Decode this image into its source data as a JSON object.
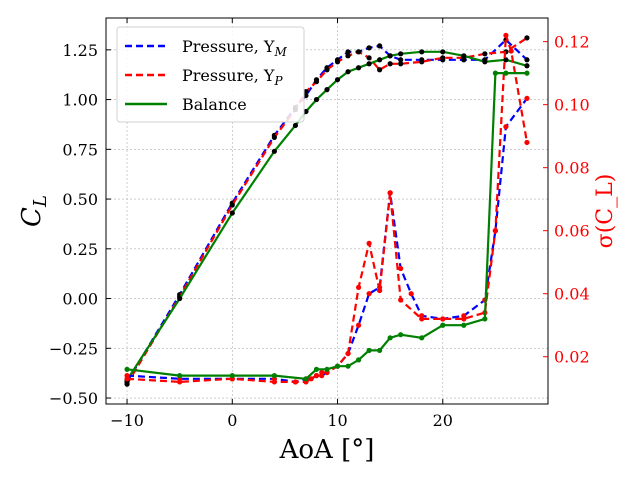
{
  "chart_data": {
    "type": "line",
    "x": [
      -10,
      -5,
      0,
      4,
      6,
      7,
      8,
      8.5,
      9,
      10,
      11,
      12,
      13,
      14,
      15,
      16,
      18,
      20,
      22,
      24,
      26,
      28
    ],
    "xlabel": "AoA [°]",
    "ylabel_left": "C_L",
    "ylabel_right": "σ(C_L)",
    "xlim": [
      -12,
      30
    ],
    "ylim_left": [
      -0.53,
      1.41
    ],
    "ylim_right": [
      0.005,
      0.1275
    ],
    "xticks": [
      -10,
      0,
      10,
      20
    ],
    "xtick_labels": [
      "−10",
      "0",
      "10",
      "20"
    ],
    "yticks_left": [
      -0.5,
      -0.25,
      0.0,
      0.25,
      0.5,
      0.75,
      1.0,
      1.25
    ],
    "ytick_labels_left": [
      "−0.50",
      "−0.25",
      "0.00",
      "0.25",
      "0.50",
      "0.75",
      "1.00",
      "1.25"
    ],
    "yticks_right": [
      0.02,
      0.04,
      0.06,
      0.08,
      0.1,
      0.12
    ],
    "ytick_labels_right": [
      "0.02",
      "0.04",
      "0.06",
      "0.08",
      "0.10",
      "0.12"
    ],
    "grid": true,
    "legend_position": "top-left",
    "legend": [
      {
        "label": "Pressure, Y",
        "sub": "M",
        "color": "#0000ff",
        "style": "dashed"
      },
      {
        "label": "Pressure, Y",
        "sub": "P",
        "color": "#ff0000",
        "style": "dashed"
      },
      {
        "label": "Balance",
        "sub": "",
        "color": "#008000",
        "style": "solid"
      }
    ],
    "series": [
      {
        "name": "Pressure, Y_M CL",
        "axis": "left",
        "color": "#0000ff",
        "style": "dashed",
        "marker": "#000000",
        "x": [
          -10,
          -5,
          0,
          4,
          6,
          7,
          8,
          9,
          10,
          11,
          12,
          13,
          14,
          15,
          16,
          18,
          20,
          22,
          24,
          26,
          28
        ],
        "values": [
          -0.42,
          0.02,
          0.48,
          0.82,
          0.96,
          1.02,
          1.1,
          1.16,
          1.2,
          1.24,
          1.24,
          1.26,
          1.27,
          1.22,
          1.2,
          1.2,
          1.2,
          1.2,
          1.2,
          1.3,
          1.2
        ]
      },
      {
        "name": "Pressure, Y_P CL",
        "axis": "left",
        "color": "#ff0000",
        "style": "dashed",
        "marker": "#000000",
        "x": [
          -10,
          -5,
          0,
          4,
          6,
          7,
          8,
          9,
          10,
          11,
          12,
          13,
          14,
          15,
          16,
          18,
          20,
          22,
          24,
          26,
          28
        ],
        "values": [
          -0.43,
          0.01,
          0.47,
          0.81,
          0.95,
          1.04,
          1.09,
          1.15,
          1.19,
          1.22,
          1.24,
          1.21,
          1.15,
          1.18,
          1.18,
          1.19,
          1.21,
          1.21,
          1.23,
          1.24,
          1.31
        ]
      },
      {
        "name": "Balance CL",
        "axis": "left",
        "color": "#008000",
        "style": "solid",
        "marker": "#000000",
        "x": [
          -10,
          -5,
          0,
          4,
          6,
          7,
          8,
          9,
          10,
          11,
          12,
          13,
          14,
          15,
          16,
          18,
          20,
          22,
          24,
          26,
          28
        ],
        "values": [
          -0.41,
          0.0,
          0.43,
          0.74,
          0.87,
          0.94,
          1.0,
          1.05,
          1.1,
          1.14,
          1.16,
          1.18,
          1.2,
          1.22,
          1.23,
          1.24,
          1.24,
          1.22,
          1.19,
          1.2,
          1.17
        ]
      },
      {
        "name": "Pressure, Y_M σ",
        "axis": "right",
        "color": "#0000ff",
        "style": "dashed",
        "marker": "#ff0000",
        "x": [
          -10,
          -5,
          0,
          4,
          6,
          7,
          7.5,
          8,
          8.5,
          9,
          10,
          11,
          12,
          13,
          14,
          15,
          16,
          17,
          18,
          20,
          22,
          24,
          25,
          26,
          28
        ],
        "values": [
          0.014,
          0.013,
          0.013,
          0.013,
          0.012,
          0.013,
          0.013,
          0.014,
          0.014,
          0.015,
          0.017,
          0.021,
          0.03,
          0.04,
          0.042,
          0.072,
          0.048,
          0.04,
          0.033,
          0.032,
          0.033,
          0.038,
          0.06,
          0.093,
          0.102
        ]
      },
      {
        "name": "Pressure, Y_P σ",
        "axis": "right",
        "color": "#ff0000",
        "style": "dashed",
        "marker": "#ff0000",
        "x": [
          -10,
          -5,
          0,
          4,
          6,
          7,
          8,
          8.5,
          9,
          10,
          11,
          12,
          13,
          14,
          15,
          16,
          18,
          20,
          22,
          24,
          25,
          26,
          26.5,
          28
        ],
        "values": [
          0.013,
          0.012,
          0.013,
          0.012,
          0.012,
          0.012,
          0.014,
          0.015,
          0.015,
          0.017,
          0.021,
          0.042,
          0.056,
          0.041,
          0.072,
          0.038,
          0.032,
          0.032,
          0.032,
          0.034,
          0.06,
          0.122,
          0.117,
          0.088
        ]
      },
      {
        "name": "Balance σ",
        "axis": "right",
        "color": "#008000",
        "style": "solid",
        "marker": "#008000",
        "x": [
          -10,
          -5,
          0,
          4,
          7,
          8,
          9,
          10,
          11,
          12,
          13,
          14,
          15,
          16,
          18,
          20,
          22,
          24,
          25,
          26,
          28
        ],
        "values": [
          0.016,
          0.014,
          0.014,
          0.014,
          0.013,
          0.016,
          0.016,
          0.017,
          0.017,
          0.019,
          0.022,
          0.022,
          0.026,
          0.027,
          0.026,
          0.03,
          0.03,
          0.032,
          0.11,
          0.11,
          0.11
        ]
      }
    ]
  }
}
